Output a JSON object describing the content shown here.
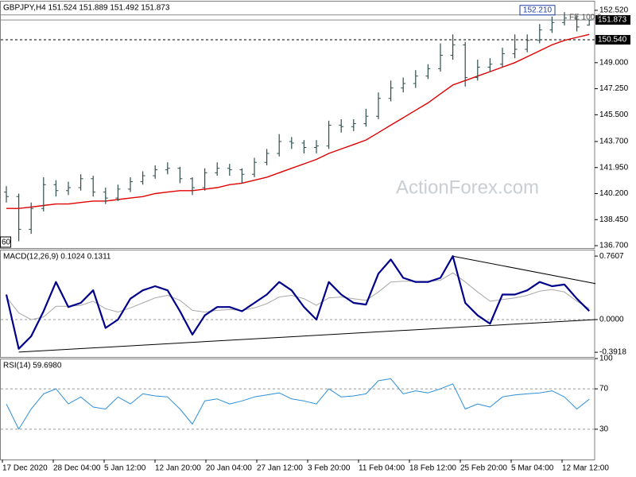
{
  "chart_data": [
    {
      "type": "ohlc",
      "title": "GBPJPY,H4  151.524 151.889 151.492 151.873",
      "watermark": "ActionForex.com",
      "corner_label": "60",
      "annotation": "FE 100.0",
      "bar_color": "#2f4f4f",
      "open": [
        140.3,
        140.0,
        137.8,
        139.2,
        140.8,
        140.4,
        140.6,
        141.2,
        140.3,
        139.9,
        140.5,
        141.0,
        141.4,
        141.8,
        141.9,
        141.2,
        140.6,
        141.6,
        141.9,
        141.8,
        141.5,
        142.3,
        142.9,
        143.7,
        143.6,
        143.3,
        143.4,
        144.8,
        144.7,
        144.9,
        145.4,
        146.6,
        147.3,
        147.6,
        148.1,
        148.6,
        149.5,
        150.2,
        148.0,
        148.7,
        148.9,
        149.6,
        149.9,
        150.5,
        151.2,
        151.7,
        152.0,
        151.524
      ],
      "high": [
        140.7,
        140.2,
        139.6,
        141.3,
        141.1,
        141.0,
        141.5,
        141.4,
        140.6,
        140.8,
        141.3,
        141.7,
        142.1,
        142.3,
        142.0,
        141.3,
        141.9,
        142.3,
        142.2,
        141.9,
        142.6,
        143.2,
        144.2,
        144.0,
        143.8,
        143.8,
        145.1,
        145.2,
        145.2,
        145.9,
        147.0,
        147.8,
        148.0,
        148.5,
        148.9,
        150.3,
        150.9,
        150.4,
        149.2,
        149.3,
        150.0,
        150.9,
        150.9,
        151.6,
        152.1,
        152.4,
        152.2,
        151.889
      ],
      "low": [
        139.6,
        137.0,
        137.5,
        139.0,
        140.0,
        140.1,
        140.4,
        140.0,
        139.5,
        139.7,
        140.3,
        140.8,
        141.2,
        141.5,
        140.9,
        140.1,
        140.4,
        141.4,
        141.4,
        140.9,
        141.3,
        142.1,
        142.7,
        143.2,
        142.9,
        142.9,
        143.2,
        144.3,
        144.4,
        144.7,
        145.2,
        146.4,
        147.0,
        147.3,
        147.9,
        148.4,
        149.2,
        147.4,
        147.8,
        148.4,
        148.7,
        149.3,
        149.7,
        150.3,
        151.0,
        151.5,
        151.1,
        151.492
      ],
      "close": [
        140.0,
        137.8,
        139.2,
        140.8,
        140.4,
        140.6,
        141.2,
        140.3,
        139.9,
        140.5,
        141.0,
        141.4,
        141.8,
        141.9,
        141.2,
        140.6,
        141.6,
        141.9,
        141.8,
        141.5,
        142.3,
        142.9,
        143.7,
        143.6,
        143.3,
        143.4,
        144.8,
        144.7,
        144.9,
        145.4,
        146.6,
        147.3,
        147.6,
        148.1,
        148.6,
        149.5,
        150.2,
        148.0,
        148.7,
        148.9,
        149.6,
        149.9,
        150.5,
        151.2,
        151.7,
        152.0,
        151.4,
        151.873
      ],
      "overlays": [
        {
          "color": "#e00000",
          "values": [
            139.2,
            139.2,
            139.3,
            139.4,
            139.5,
            139.5,
            139.6,
            139.7,
            139.7,
            139.8,
            139.9,
            140.0,
            140.2,
            140.3,
            140.4,
            140.4,
            140.5,
            140.6,
            140.8,
            140.9,
            141.1,
            141.3,
            141.6,
            141.9,
            142.2,
            142.5,
            142.9,
            143.2,
            143.5,
            143.8,
            144.3,
            144.8,
            145.3,
            145.8,
            146.3,
            146.9,
            147.5,
            147.8,
            148.1,
            148.4,
            148.7,
            149.0,
            149.4,
            149.8,
            150.2,
            150.5,
            150.7,
            150.9
          ]
        }
      ],
      "price_lines": [
        {
          "value": 152.21,
          "label": "152.210",
          "style": "solid"
        },
        {
          "value": 151.873,
          "label": "151.873",
          "style": "current"
        },
        {
          "value": 150.54,
          "label": "150.540",
          "style": "dashed"
        }
      ],
      "ylim": [
        136.54,
        153.16
      ],
      "yticks": [
        {
          "value": 152.52,
          "label": "152.520"
        },
        {
          "value": 149.0,
          "label": "149.000"
        },
        {
          "value": 147.25,
          "label": "147.250"
        },
        {
          "value": 145.5,
          "label": "145.500"
        },
        {
          "value": 143.7,
          "label": "143.700"
        },
        {
          "value": 141.95,
          "label": "141.950"
        },
        {
          "value": 140.2,
          "label": "140.200"
        },
        {
          "value": 138.45,
          "label": "138.450"
        },
        {
          "value": 136.7,
          "label": "136.700"
        }
      ]
    },
    {
      "type": "line",
      "title": "MACD(12,26,9) 0.1024 0.1311",
      "series": [
        {
          "color": "#00008b",
          "width": 2.2,
          "values": [
            0.3,
            -0.35,
            -0.2,
            0.1,
            0.45,
            0.15,
            0.2,
            0.35,
            -0.1,
            0.0,
            0.25,
            0.35,
            0.4,
            0.35,
            0.1,
            -0.18,
            0.05,
            0.15,
            0.15,
            0.1,
            0.2,
            0.3,
            0.45,
            0.35,
            0.15,
            0.0,
            0.45,
            0.3,
            0.2,
            0.18,
            0.55,
            0.72,
            0.5,
            0.45,
            0.45,
            0.5,
            0.76,
            0.2,
            0.05,
            -0.05,
            0.3,
            0.3,
            0.35,
            0.45,
            0.4,
            0.42,
            0.25,
            0.1024
          ]
        },
        {
          "color": "#a8a8a8",
          "width": 1,
          "values": [
            0.27,
            0.08,
            0.0,
            0.03,
            0.16,
            0.16,
            0.17,
            0.22,
            0.13,
            0.09,
            0.14,
            0.2,
            0.26,
            0.29,
            0.23,
            0.11,
            0.09,
            0.11,
            0.12,
            0.11,
            0.14,
            0.19,
            0.27,
            0.29,
            0.25,
            0.17,
            0.26,
            0.27,
            0.25,
            0.23,
            0.33,
            0.45,
            0.46,
            0.46,
            0.46,
            0.47,
            0.56,
            0.45,
            0.33,
            0.22,
            0.24,
            0.26,
            0.29,
            0.34,
            0.36,
            0.33,
            0.22,
            0.1311
          ]
        }
      ],
      "trendlines": [
        {
          "x": [
            36,
            47.5
          ],
          "values": [
            0.76,
            0.43
          ]
        },
        {
          "x": [
            1,
            47.5
          ],
          "values": [
            -0.39,
            0.0
          ]
        }
      ],
      "levels": [
        0
      ],
      "ylim": [
        -0.448,
        0.838
      ],
      "yticks": [
        0.7607,
        {
          "value": 0,
          "label": "0.0000"
        },
        -0.3918
      ]
    },
    {
      "type": "line",
      "title": "RSI(14) 59.6980",
      "series": [
        {
          "color": "#2f8fd8",
          "width": 1,
          "values": [
            55,
            30,
            50,
            65,
            70,
            55,
            62,
            52,
            50,
            62,
            55,
            65,
            63,
            62,
            50,
            35,
            58,
            60,
            55,
            58,
            62,
            64,
            66,
            60,
            58,
            55,
            70,
            62,
            63,
            65,
            78,
            80,
            65,
            68,
            66,
            70,
            75,
            50,
            55,
            52,
            62,
            64,
            65,
            66,
            68,
            62,
            50,
            59.698
          ]
        }
      ],
      "levels": [
        70,
        30
      ],
      "ylim": [
        0,
        100
      ],
      "yticks": [
        100,
        70,
        30
      ],
      "x_labels": [
        "17 Dec 2020",
        "28 Dec 04:00",
        "5 Jan 12:00",
        "12 Jan 20:00",
        "20 Jan 04:00",
        "27 Jan 12:00",
        "3 Feb 20:00",
        "11 Feb 04:00",
        "18 Feb 12:00",
        "25 Feb 20:00",
        "5 Mar 04:00",
        "12 Mar 12:00"
      ]
    }
  ]
}
